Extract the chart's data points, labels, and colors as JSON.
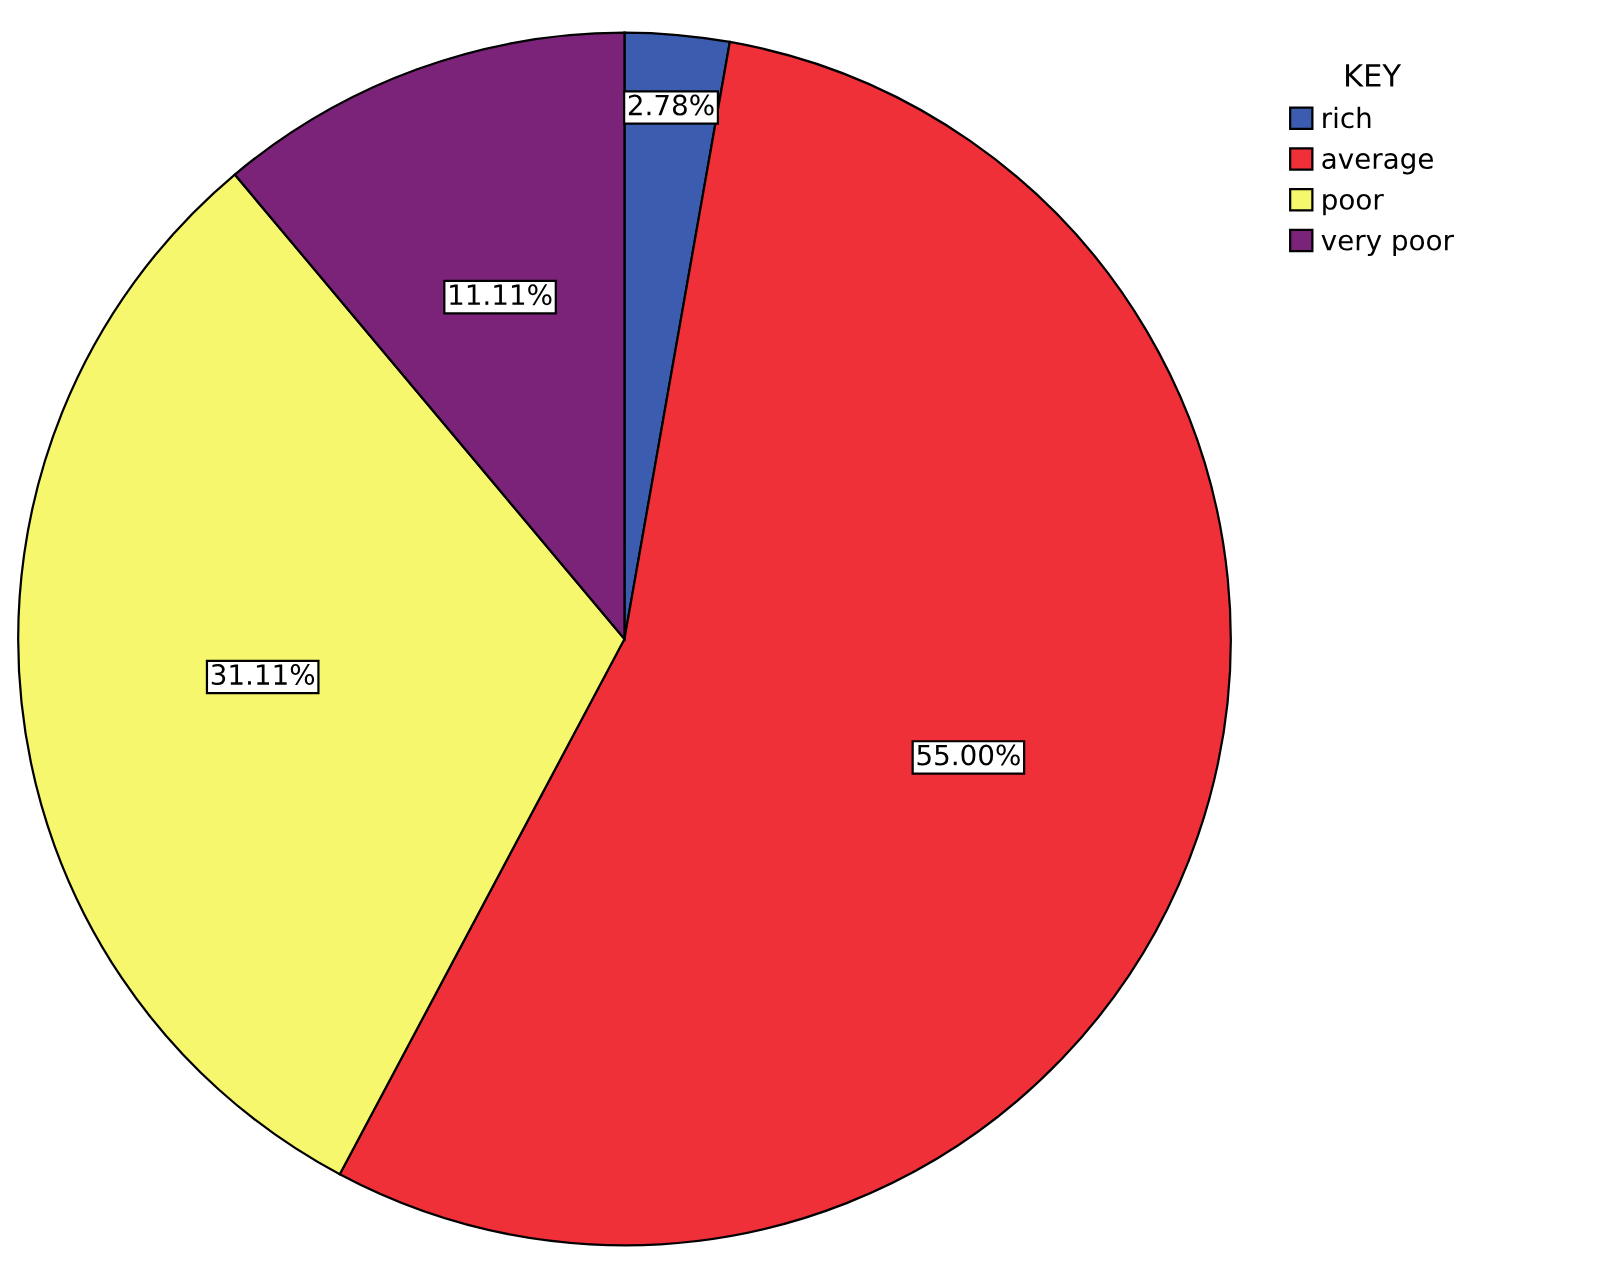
{
  "chart_data": {
    "type": "pie",
    "categories": [
      "rich",
      "average",
      "poor",
      "very poor"
    ],
    "values": [
      2.78,
      55.0,
      31.11,
      11.11
    ],
    "value_labels": [
      "2.78%",
      "55.00%",
      "31.11%",
      "11.11%"
    ],
    "colors": [
      "#3c5cb0",
      "#ef3038",
      "#f7f76e",
      "#7a2379"
    ],
    "legend_title": "KEY",
    "legend": "top right"
  }
}
